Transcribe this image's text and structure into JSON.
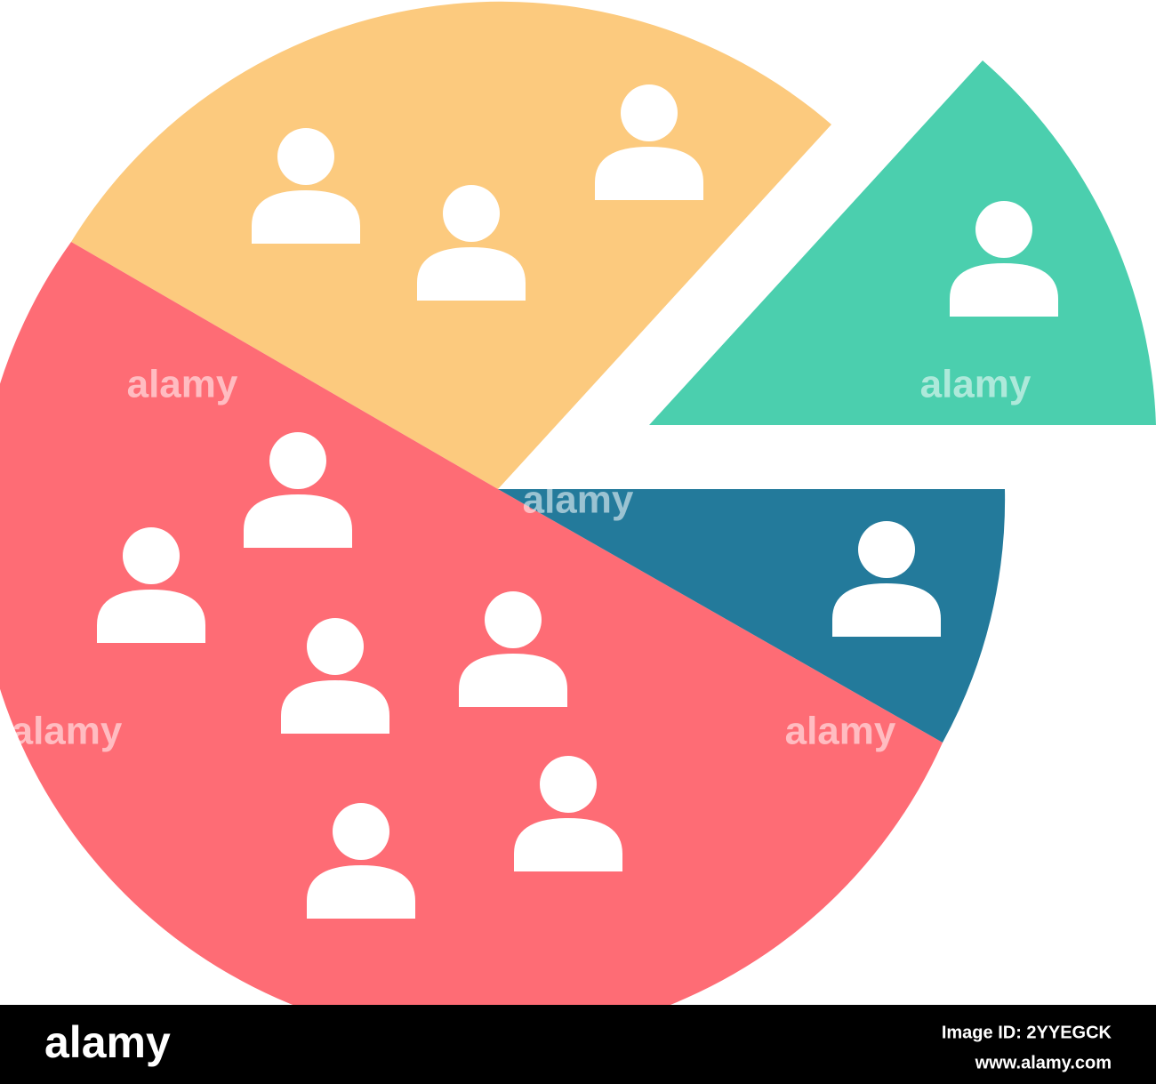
{
  "watermarks": [
    "alamy",
    "alamy",
    "alamy",
    "alamy",
    "alamy"
  ],
  "footer": {
    "logo": "alamy",
    "image_id": "Image ID: 2YYEGCK",
    "url": "www.alamy.com"
  }
}
